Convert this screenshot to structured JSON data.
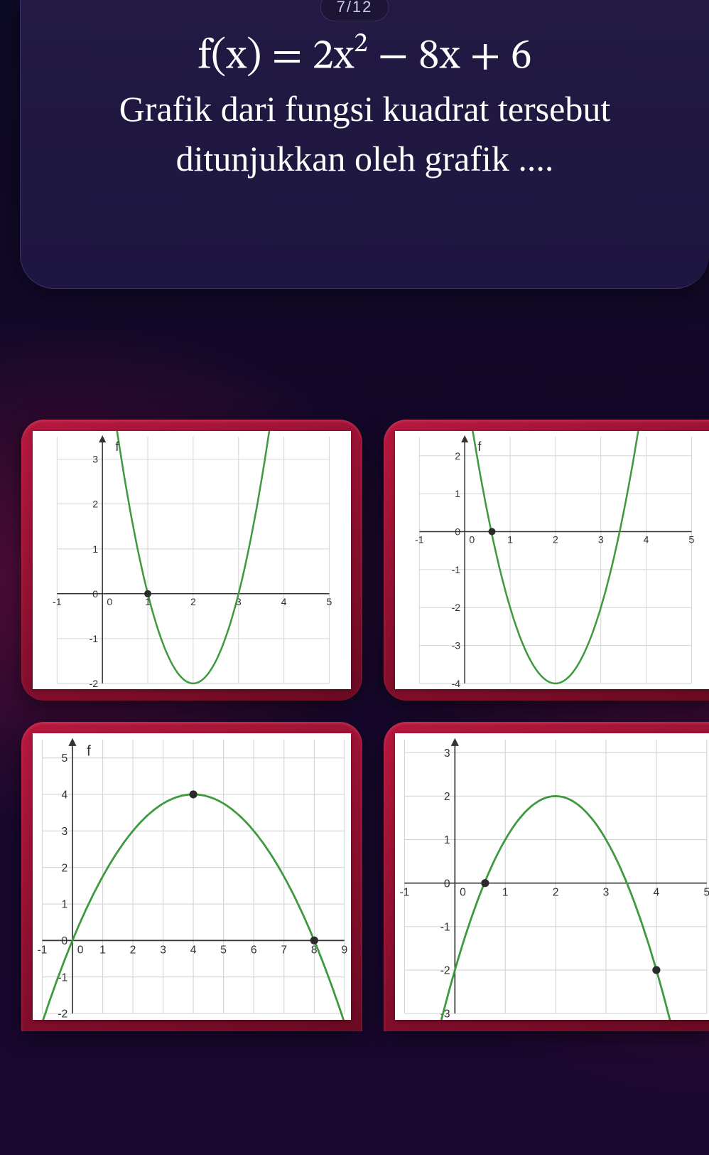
{
  "progress": "7/12",
  "question": {
    "formula_display": "f(x) = 2x² − 8x + 6",
    "text": "Grafik dari fungsi kuadrat tersebut ditunjukkan oleh grafik ...."
  },
  "style": {
    "grid_color": "#d5d5d5",
    "axis_color": "#333333",
    "curve_color": "#3f9a3f",
    "curve_width": 2.5,
    "point_fill": "#2b2b2b",
    "chart_bg": "#ffffff"
  },
  "options": [
    {
      "id": "A",
      "type": "parabola",
      "function_label": "f",
      "coeff_a": 2,
      "coeff_b": -8,
      "coeff_c": 6,
      "xlim": [
        -1,
        5
      ],
      "ylim": [
        -2,
        3.5
      ],
      "xticks": [
        -1,
        0,
        1,
        2,
        3,
        4,
        5
      ],
      "yticks": [
        -2,
        -1,
        0,
        1,
        2,
        3
      ],
      "vertex": [
        2,
        -2
      ],
      "highlight_point": [
        1,
        0
      ]
    },
    {
      "id": "B",
      "type": "parabola",
      "function_label": "f",
      "coeff_a": 2,
      "coeff_b": -8,
      "coeff_c": 4,
      "xlim": [
        -1,
        5
      ],
      "ylim": [
        -4,
        2.5
      ],
      "xticks": [
        -1,
        0,
        1,
        2,
        3,
        4,
        5
      ],
      "yticks": [
        -4,
        -3,
        -2,
        -1,
        0,
        1,
        2
      ],
      "vertex": [
        2,
        -4
      ],
      "highlight_point": [
        0.6,
        0
      ]
    },
    {
      "id": "C",
      "type": "parabola",
      "function_label": "f",
      "coeff_a": -0.25,
      "coeff_b": 2,
      "coeff_c": 0,
      "xlim": [
        -1,
        9
      ],
      "ylim": [
        -2,
        5.5
      ],
      "xticks": [
        -1,
        0,
        1,
        2,
        3,
        4,
        5,
        6,
        7,
        8,
        9
      ],
      "yticks": [
        -2,
        -1,
        0,
        1,
        2,
        3,
        4,
        5
      ],
      "vertex": [
        4,
        4
      ],
      "highlight_point": [
        8,
        0
      ],
      "extra_point": [
        4,
        4
      ]
    },
    {
      "id": "D",
      "type": "parabola",
      "function_label": null,
      "coeff_a": -1,
      "coeff_b": 4,
      "coeff_c": -2,
      "xlim": [
        -1,
        5
      ],
      "ylim": [
        -3,
        3.3
      ],
      "xticks": [
        -1,
        0,
        1,
        2,
        3,
        4,
        5
      ],
      "yticks": [
        -3,
        -2,
        -1,
        0,
        1,
        2,
        3
      ],
      "vertex": [
        2,
        2
      ],
      "highlight_point": [
        0.6,
        0
      ],
      "extra_point": [
        4,
        -2
      ]
    }
  ]
}
